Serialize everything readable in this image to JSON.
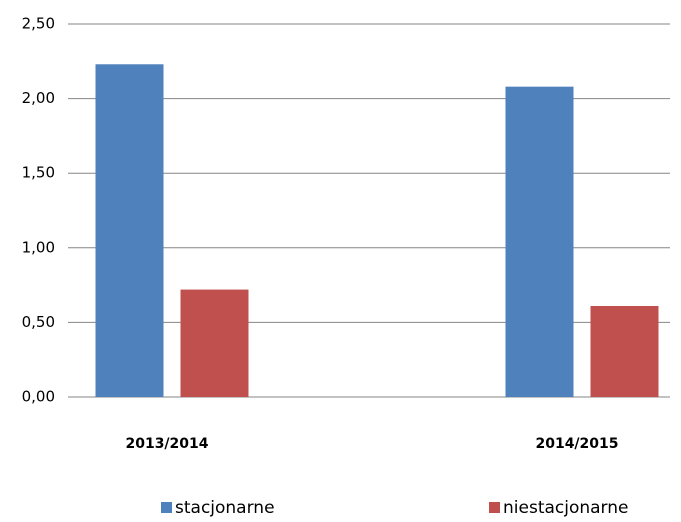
{
  "chart_data": {
    "type": "bar",
    "categories": [
      "2013/2014",
      "2014/2015"
    ],
    "series": [
      {
        "name": "stacjonarne",
        "color": "#4f81bd",
        "values": [
          2.23,
          2.08
        ]
      },
      {
        "name": "niestacjonarne",
        "color": "#c0504d",
        "values": [
          0.72,
          0.61
        ]
      }
    ],
    "ylim": [
      0,
      2.5
    ],
    "yticks": [
      {
        "value": 0,
        "label": "0,00"
      },
      {
        "value": 0.5,
        "label": "0,50"
      },
      {
        "value": 1,
        "label": "1,00"
      },
      {
        "value": 1.5,
        "label": "1,50"
      },
      {
        "value": 2,
        "label": "2,00"
      },
      {
        "value": 2.5,
        "label": "2,50"
      }
    ],
    "grid": true,
    "legend": "bottom"
  }
}
